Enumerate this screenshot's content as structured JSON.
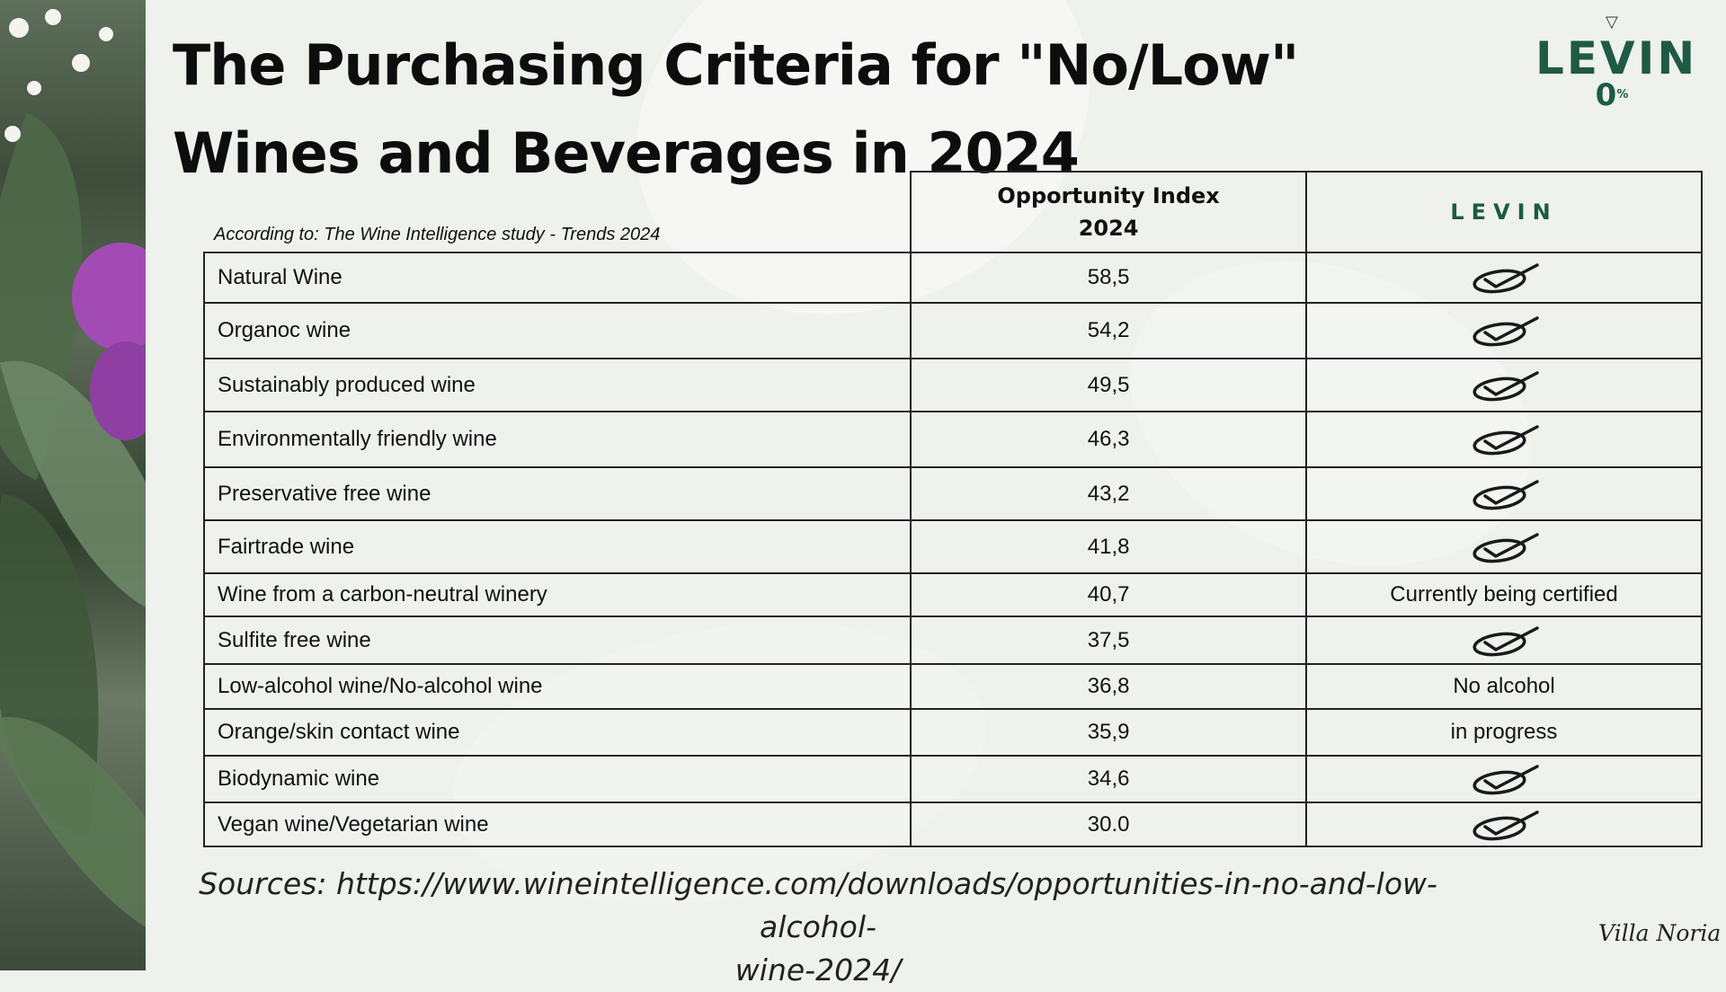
{
  "title": "The Purchasing Criteria for \"No/Low\" Wines and Beverages in 2024",
  "logo_top": {
    "word": "LEVIN",
    "sub": "0",
    "sub_suffix": "%"
  },
  "note": "According to: The Wine Intelligence study - Trends 2024",
  "table": {
    "col_index_line1": "Opportunity Index",
    "col_index_line2": "2024",
    "col_brand": "LEVIN",
    "rows": [
      {
        "criterion": "Natural Wine",
        "index": "58,5",
        "levin": "",
        "check": true
      },
      {
        "criterion": "Organoc wine",
        "index": "54,2",
        "levin": "",
        "check": true
      },
      {
        "criterion": "Sustainably produced wine",
        "index": "49,5",
        "levin": "",
        "check": true
      },
      {
        "criterion": "Environmentally friendly wine",
        "index": "46,3",
        "levin": "",
        "check": true
      },
      {
        "criterion": "Preservative free wine",
        "index": "43,2",
        "levin": "",
        "check": true
      },
      {
        "criterion": "Fairtrade wine",
        "index": "41,8",
        "levin": "",
        "check": true
      },
      {
        "criterion": "Wine from a carbon-neutral winery",
        "index": "40,7",
        "levin": "Currently being certified",
        "check": false
      },
      {
        "criterion": "Sulfite free wine",
        "index": "37,5",
        "levin": "",
        "check": true
      },
      {
        "criterion": "Low-alcohol wine/No-alcohol wine",
        "index": "36,8",
        "levin": "No alcohol",
        "check": false
      },
      {
        "criterion": "Orange/skin contact wine",
        "index": "35,9",
        "levin": "in progress",
        "check": false
      },
      {
        "criterion": "Biodynamic wine",
        "index": "34,6",
        "levin": "",
        "check": true
      },
      {
        "criterion": "Vegan wine/Vegetarian wine",
        "index": "30.0",
        "levin": "",
        "check": true
      }
    ]
  },
  "sources_line1": "Sources: https://www.wineintelligence.com/downloads/opportunities-in-no-and-low-alcohol-",
  "sources_line2": "wine-2024/",
  "signature": "Villa Noria",
  "icons": {
    "check": "checkmark-icon"
  },
  "colors": {
    "brand": "#1a5a44",
    "background": "#eef1ec"
  }
}
